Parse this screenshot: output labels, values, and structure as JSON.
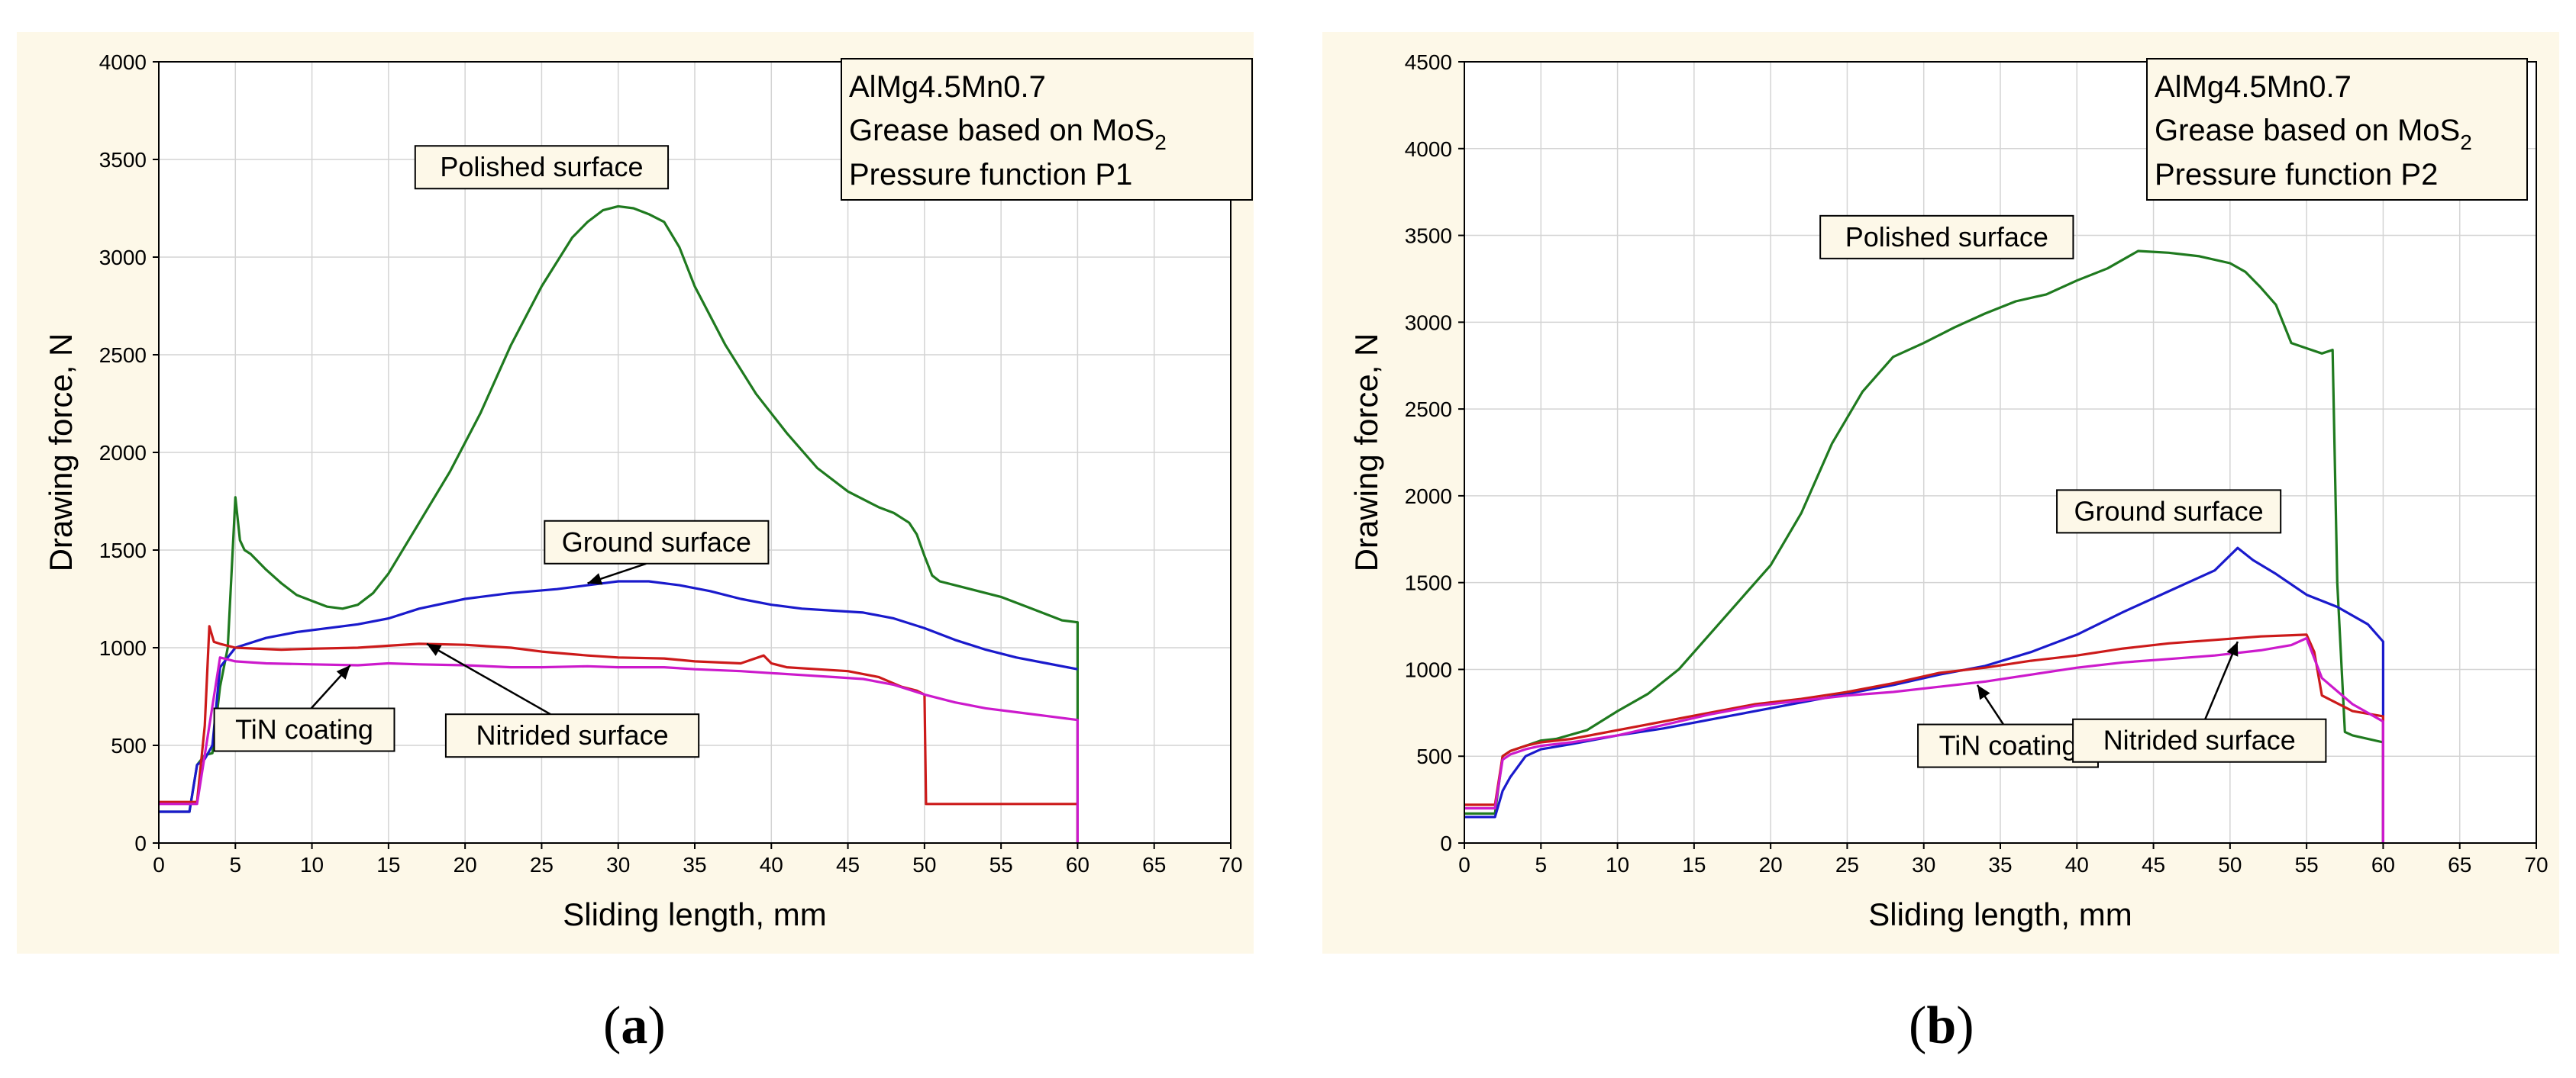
{
  "chart_data": [
    {
      "id": "a",
      "type": "line",
      "xlabel": "Sliding length, mm",
      "ylabel": "Drawing force, N",
      "xlim": [
        0,
        70
      ],
      "ylim": [
        0,
        4000
      ],
      "xticks": [
        0,
        5,
        10,
        15,
        20,
        25,
        30,
        35,
        40,
        45,
        50,
        55,
        60,
        65,
        70
      ],
      "yticks": [
        0,
        500,
        1000,
        1500,
        2000,
        2500,
        3000,
        3500,
        4000
      ],
      "grid": true,
      "info_box": {
        "line1": "AlMg4.5Mn0.7",
        "line2_main": "Grease based on MoS",
        "line2_sub": "2",
        "line3": "Pressure function P1"
      },
      "series": [
        {
          "name": "Polished surface",
          "color": "#1f7a1f",
          "x": [
            0,
            1,
            2,
            2.5,
            3,
            3.5,
            4,
            4.5,
            5,
            5.3,
            5.6,
            6,
            7,
            8,
            9,
            10,
            11,
            12,
            13,
            14,
            15,
            17,
            19,
            21,
            23,
            25,
            27,
            28,
            29,
            30,
            31,
            32,
            33,
            34,
            35,
            37,
            39,
            41,
            43,
            45,
            47,
            48,
            49,
            49.5,
            50,
            50.5,
            51,
            53,
            55,
            57,
            59,
            60,
            60
          ],
          "y": [
            160,
            160,
            160,
            400,
            450,
            460,
            800,
            1000,
            1770,
            1550,
            1500,
            1480,
            1400,
            1330,
            1270,
            1240,
            1210,
            1200,
            1220,
            1280,
            1380,
            1640,
            1900,
            2200,
            2550,
            2850,
            3100,
            3180,
            3240,
            3260,
            3250,
            3220,
            3180,
            3050,
            2850,
            2550,
            2300,
            2100,
            1920,
            1800,
            1720,
            1690,
            1640,
            1580,
            1470,
            1370,
            1340,
            1300,
            1260,
            1200,
            1140,
            1130,
            0
          ]
        },
        {
          "name": "Ground surface",
          "color": "#1a1acc",
          "x": [
            0,
            2,
            2.5,
            3,
            3.5,
            4,
            5,
            7,
            9,
            11,
            13,
            15,
            17,
            20,
            23,
            26,
            28,
            30,
            32,
            34,
            36,
            38,
            40,
            42,
            44,
            46,
            48,
            50,
            52,
            54,
            56,
            58,
            60
          ],
          "y": [
            160,
            160,
            400,
            430,
            500,
            900,
            1000,
            1050,
            1080,
            1100,
            1120,
            1150,
            1200,
            1250,
            1280,
            1300,
            1320,
            1340,
            1340,
            1320,
            1290,
            1250,
            1220,
            1200,
            1190,
            1180,
            1150,
            1100,
            1040,
            990,
            950,
            920,
            890
          ]
        },
        {
          "name": "Nitrided surface",
          "color": "#cc1a1a",
          "x": [
            0,
            2.5,
            3,
            3.3,
            3.6,
            4,
            5,
            8,
            10,
            13,
            15,
            17,
            20,
            23,
            25,
            28,
            30,
            33,
            35,
            38,
            39.5,
            40,
            41,
            43,
            45,
            47,
            48.5,
            49.5,
            50,
            50.1,
            52,
            55,
            58,
            60,
            60
          ],
          "y": [
            210,
            210,
            600,
            1110,
            1030,
            1020,
            1000,
            990,
            995,
            1000,
            1010,
            1020,
            1015,
            1000,
            980,
            960,
            950,
            945,
            930,
            920,
            960,
            920,
            900,
            890,
            880,
            850,
            800,
            780,
            760,
            200,
            200,
            200,
            200,
            200,
            0
          ]
        },
        {
          "name": "TiN coating",
          "color": "#cc1acc",
          "x": [
            0,
            2.5,
            3,
            3.5,
            4,
            5,
            7,
            10,
            13,
            15,
            17,
            20,
            23,
            25,
            28,
            30,
            33,
            35,
            38,
            40,
            42,
            44,
            46,
            48,
            50,
            52,
            54,
            56,
            58,
            60,
            60
          ],
          "y": [
            200,
            200,
            450,
            700,
            950,
            930,
            920,
            915,
            910,
            920,
            915,
            910,
            900,
            900,
            905,
            900,
            900,
            890,
            880,
            870,
            860,
            850,
            840,
            810,
            760,
            720,
            690,
            670,
            650,
            630,
            0
          ]
        }
      ],
      "annotations": [
        {
          "text": "Polished surface",
          "x": 25,
          "y": 3460,
          "arrow_to": null
        },
        {
          "text": "Ground surface",
          "x": 32.5,
          "y": 1540,
          "arrow_to": [
            28,
            1330
          ]
        },
        {
          "text": "TiN coating",
          "x": 9.5,
          "y": 580,
          "arrow_to": [
            12.5,
            910
          ]
        },
        {
          "text": "Nitrided surface",
          "x": 27,
          "y": 550,
          "arrow_to": [
            17.5,
            1020
          ]
        }
      ]
    },
    {
      "id": "b",
      "type": "line",
      "xlabel": "Sliding length, mm",
      "ylabel": "Drawing force, N",
      "xlim": [
        0,
        70
      ],
      "ylim": [
        0,
        4500
      ],
      "xticks": [
        0,
        5,
        10,
        15,
        20,
        25,
        30,
        35,
        40,
        45,
        50,
        55,
        60,
        65,
        70
      ],
      "yticks": [
        0,
        500,
        1000,
        1500,
        2000,
        2500,
        3000,
        3500,
        4000,
        4500
      ],
      "grid": true,
      "info_box": {
        "line1": "AlMg4.5Mn0.7",
        "line2_main": "Grease based on MoS",
        "line2_sub": "2",
        "line3": "Pressure function P2"
      },
      "series": [
        {
          "name": "Polished surface",
          "color": "#1f7a1f",
          "x": [
            0,
            2,
            2.5,
            3,
            4,
            5,
            6,
            8,
            10,
            12,
            14,
            16,
            18,
            20,
            22,
            24,
            26,
            28,
            30,
            32,
            34,
            36,
            38,
            40,
            42,
            44,
            46,
            48,
            50,
            51,
            52,
            53,
            54,
            55,
            56,
            56.7,
            57,
            57.5,
            58,
            60,
            60
          ],
          "y": [
            170,
            170,
            500,
            530,
            560,
            590,
            600,
            650,
            760,
            860,
            1000,
            1200,
            1400,
            1600,
            1900,
            2300,
            2600,
            2800,
            2880,
            2970,
            3050,
            3120,
            3160,
            3240,
            3310,
            3410,
            3400,
            3380,
            3340,
            3290,
            3200,
            3100,
            2880,
            2850,
            2820,
            2840,
            1500,
            640,
            620,
            580,
            0
          ]
        },
        {
          "name": "Ground surface",
          "color": "#1a1acc",
          "x": [
            0,
            2,
            2.5,
            3,
            4,
            5,
            7,
            10,
            13,
            16,
            19,
            22,
            25,
            28,
            31,
            34,
            37,
            40,
            43,
            46,
            49,
            50.5,
            51.5,
            53,
            55,
            57,
            59,
            60,
            60
          ],
          "y": [
            150,
            150,
            300,
            380,
            500,
            540,
            570,
            620,
            660,
            710,
            760,
            810,
            860,
            910,
            970,
            1020,
            1100,
            1200,
            1330,
            1450,
            1570,
            1700,
            1630,
            1550,
            1430,
            1360,
            1260,
            1160,
            0
          ]
        },
        {
          "name": "Nitrided surface",
          "color": "#cc1a1a",
          "x": [
            0,
            2,
            2.5,
            3,
            4,
            5,
            7,
            10,
            13,
            16,
            19,
            22,
            25,
            28,
            31,
            34,
            37,
            40,
            43,
            46,
            49,
            52,
            55,
            55.5,
            56,
            58,
            60,
            60
          ],
          "y": [
            220,
            220,
            500,
            530,
            560,
            580,
            600,
            650,
            700,
            750,
            800,
            830,
            870,
            920,
            980,
            1010,
            1050,
            1080,
            1120,
            1150,
            1170,
            1190,
            1200,
            1100,
            850,
            760,
            730,
            0
          ]
        },
        {
          "name": "TiN coating",
          "color": "#cc1acc",
          "x": [
            0,
            2,
            2.5,
            3,
            4,
            5,
            7,
            10,
            13,
            16,
            19,
            22,
            25,
            28,
            31,
            34,
            37,
            40,
            43,
            46,
            49,
            52,
            54,
            55,
            56,
            58,
            60,
            60
          ],
          "y": [
            200,
            200,
            480,
            510,
            540,
            560,
            580,
            620,
            680,
            740,
            790,
            820,
            850,
            870,
            900,
            930,
            970,
            1010,
            1040,
            1060,
            1080,
            1110,
            1140,
            1180,
            950,
            800,
            700,
            0
          ]
        }
      ],
      "annotations": [
        {
          "text": "Polished surface",
          "x": 31.5,
          "y": 3490,
          "arrow_to": null
        },
        {
          "text": "Ground surface",
          "x": 46,
          "y": 1910,
          "arrow_to": null
        },
        {
          "text": "TiN coating",
          "x": 35.5,
          "y": 560,
          "arrow_to": [
            33.5,
            910
          ]
        },
        {
          "text": "Nitrided surface",
          "x": 48,
          "y": 590,
          "arrow_to": [
            50.5,
            1160
          ]
        }
      ]
    }
  ],
  "sublabels": {
    "a": "a",
    "b": "b"
  }
}
